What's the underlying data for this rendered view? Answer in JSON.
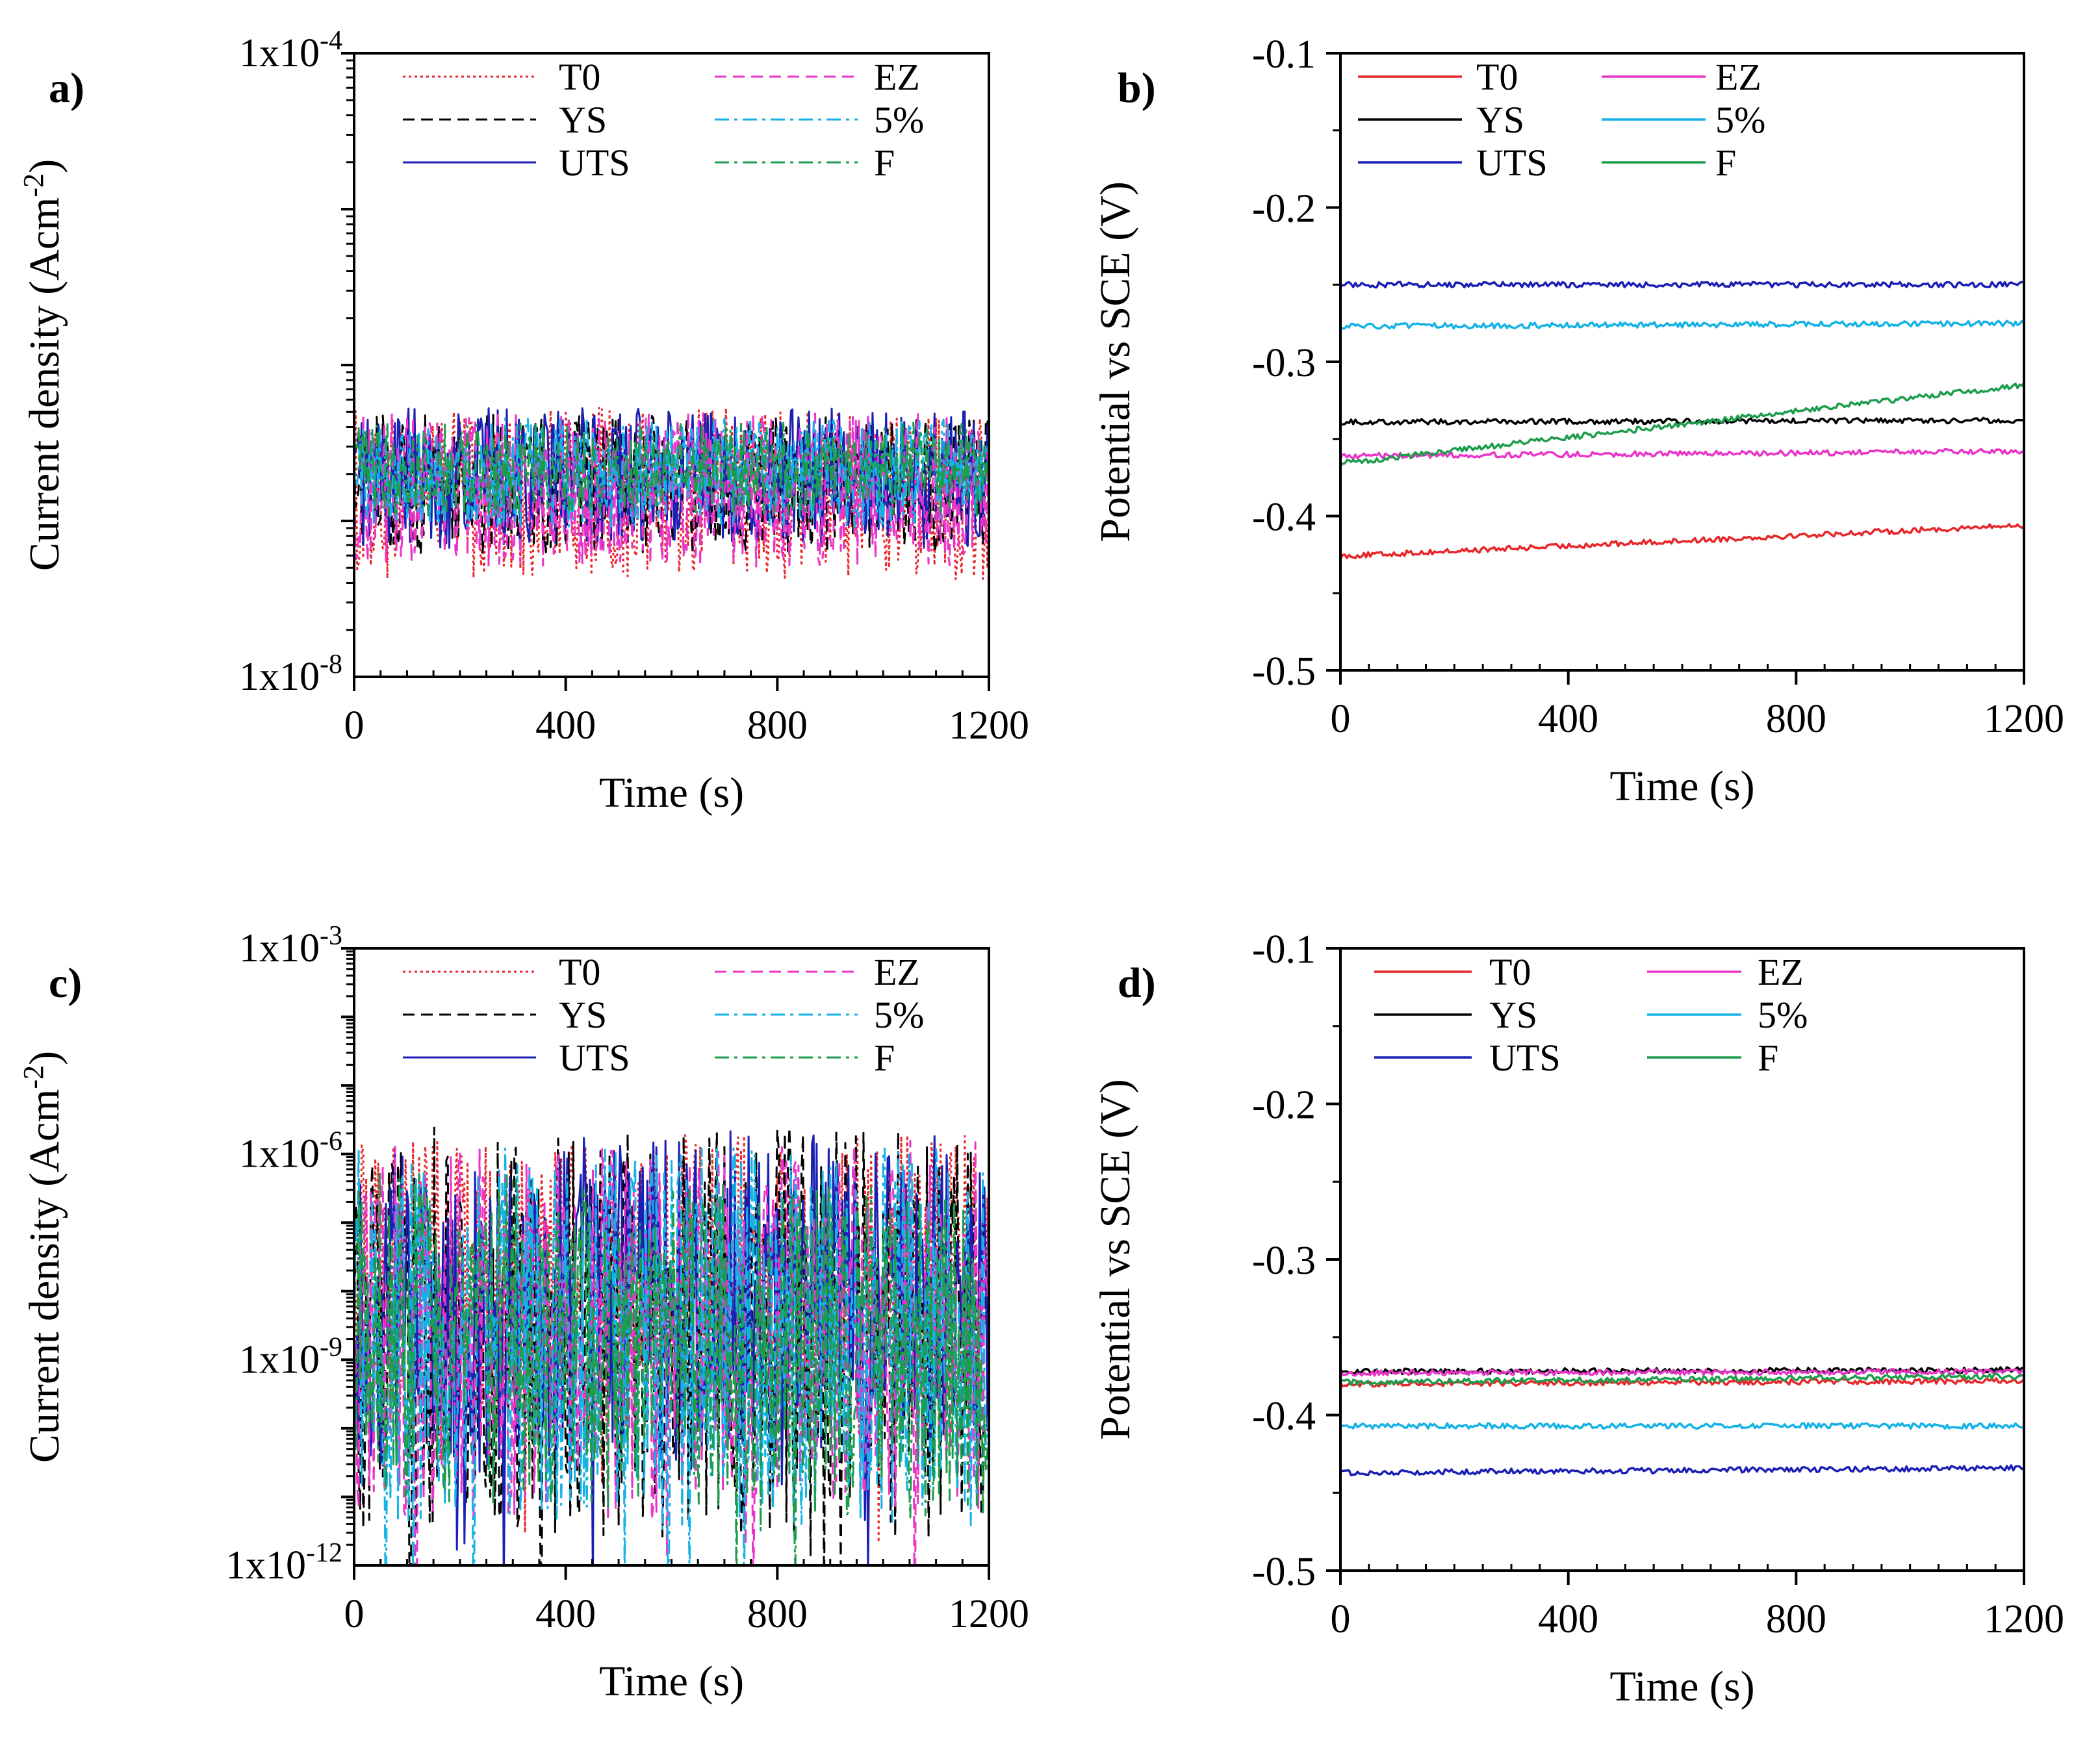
{
  "chart_data": [
    {
      "panel": "a)",
      "type": "line",
      "yscale": "log",
      "xlabel": "Time (s)",
      "ylabel": "Current density (Acm-2)",
      "ylabel_parts": {
        "base": "Current density (Acm",
        "sup": "-2",
        "close": ")"
      },
      "xlim": [
        0,
        1200
      ],
      "ylim": [
        1e-08,
        0.0001
      ],
      "xticks": [
        "0",
        "400",
        "800",
        "1200"
      ],
      "yticks": [
        {
          "value": 0.0001,
          "mantissa": "1x10",
          "exp": "-4"
        },
        {
          "value": 1e-08,
          "mantissa": "1x10",
          "exp": "-8"
        }
      ],
      "series": [
        {
          "name": "T0",
          "style": "dotted",
          "color": "#e8262a",
          "base": 1.7e-07,
          "spread": 0.55,
          "trend": 0.0
        },
        {
          "name": "YS",
          "style": "dashed",
          "color": "#000000",
          "base": 1.9e-07,
          "spread": 0.45,
          "trend": 0.0
        },
        {
          "name": "UTS",
          "style": "solid",
          "color": "#1c1fb4",
          "base": 2.1e-07,
          "spread": 0.45,
          "trend": 0.0
        },
        {
          "name": "EZ",
          "style": "dashed",
          "color": "#e935c8",
          "base": 1.8e-07,
          "spread": 0.5,
          "trend": 0.0
        },
        {
          "name": "5%",
          "style": "dashdot",
          "color": "#15b2e6",
          "base": 2.2e-07,
          "spread": 0.35,
          "trend": 0.0
        },
        {
          "name": "F",
          "style": "dashdot",
          "color": "#1d9c4c",
          "base": 2.3e-07,
          "spread": 0.3,
          "trend": 0.0
        }
      ]
    },
    {
      "panel": "b)",
      "type": "line",
      "yscale": "linear",
      "xlabel": "Time (s)",
      "ylabel": "Potential vs SCE (V)",
      "xlim": [
        0,
        1200
      ],
      "ylim": [
        -0.5,
        -0.1
      ],
      "xticks": [
        "0",
        "400",
        "800",
        "1200"
      ],
      "yticks": [
        "-0.1",
        "-0.2",
        "-0.3",
        "-0.4",
        "-0.5"
      ],
      "series": [
        {
          "name": "T0",
          "style": "solid",
          "color": "#e8262a",
          "start": -0.426,
          "end": -0.406
        },
        {
          "name": "YS",
          "style": "solid",
          "color": "#000000",
          "start": -0.339,
          "end": -0.338
        },
        {
          "name": "UTS",
          "style": "solid",
          "color": "#1c1fb4",
          "start": -0.25,
          "end": -0.25
        },
        {
          "name": "EZ",
          "style": "solid",
          "color": "#e935c8",
          "start": -0.361,
          "end": -0.358
        },
        {
          "name": "5%",
          "style": "solid",
          "color": "#15b2e6",
          "start": -0.277,
          "end": -0.275
        },
        {
          "name": "F",
          "style": "solid",
          "color": "#1d9c4c",
          "start": -0.366,
          "end": -0.315
        }
      ]
    },
    {
      "panel": "c)",
      "type": "line",
      "yscale": "log",
      "xlabel": "Time (s)",
      "ylabel": "Current density (Acm-2)",
      "ylabel_parts": {
        "base": "Current density (Acm",
        "sup": "-2",
        "close": ")"
      },
      "xlim": [
        0,
        1200
      ],
      "ylim": [
        1e-12,
        0.001
      ],
      "xticks": [
        "0",
        "400",
        "800",
        "1200"
      ],
      "yticks": [
        {
          "value": 0.001,
          "mantissa": "1x10",
          "exp": "-3"
        },
        {
          "value": 1e-06,
          "mantissa": "1x10",
          "exp": "-6"
        },
        {
          "value": 1e-09,
          "mantissa": "1x10",
          "exp": "-9"
        },
        {
          "value": 1e-12,
          "mantissa": "1x10",
          "exp": "-12"
        }
      ],
      "series": [
        {
          "name": "T0",
          "style": "dotted",
          "color": "#e8262a",
          "base": 2e-08,
          "spread": 2.2,
          "trend": 0.0
        },
        {
          "name": "YS",
          "style": "dashed",
          "color": "#000000",
          "base": 5e-09,
          "spread": 3.0,
          "trend": 0.0
        },
        {
          "name": "UTS",
          "style": "solid",
          "color": "#1c1fb4",
          "base": 8e-09,
          "spread": 2.4,
          "trend": 0.5
        },
        {
          "name": "EZ",
          "style": "dashed",
          "color": "#e935c8",
          "base": 5e-09,
          "spread": 2.8,
          "trend": 0.0
        },
        {
          "name": "5%",
          "style": "dashdot",
          "color": "#15b2e6",
          "base": 4e-09,
          "spread": 2.8,
          "trend": 0.0
        },
        {
          "name": "F",
          "style": "dashdot",
          "color": "#1d9c4c",
          "base": 4e-09,
          "spread": 2.4,
          "trend": -0.3
        }
      ]
    },
    {
      "panel": "d)",
      "type": "line",
      "yscale": "linear",
      "xlabel": "Time (s)",
      "ylabel": "Potential vs SCE (V)",
      "xlim": [
        0,
        1200
      ],
      "ylim": [
        -0.5,
        -0.1
      ],
      "xticks": [
        "0",
        "400",
        "800",
        "1200"
      ],
      "yticks": [
        "-0.1",
        "-0.2",
        "-0.3",
        "-0.4",
        "-0.5"
      ],
      "series": [
        {
          "name": "T0",
          "style": "solid",
          "color": "#e8262a",
          "start": -0.38,
          "end": -0.378
        },
        {
          "name": "YS",
          "style": "solid",
          "color": "#000000",
          "start": -0.372,
          "end": -0.371
        },
        {
          "name": "UTS",
          "style": "solid",
          "color": "#1c1fb4",
          "start": -0.437,
          "end": -0.434
        },
        {
          "name": "EZ",
          "style": "solid",
          "color": "#e935c8",
          "start": -0.373,
          "end": -0.372
        },
        {
          "name": "5%",
          "style": "solid",
          "color": "#15b2e6",
          "start": -0.407,
          "end": -0.407
        },
        {
          "name": "F",
          "style": "solid",
          "color": "#1d9c4c",
          "start": -0.379,
          "end": -0.375
        }
      ]
    }
  ]
}
